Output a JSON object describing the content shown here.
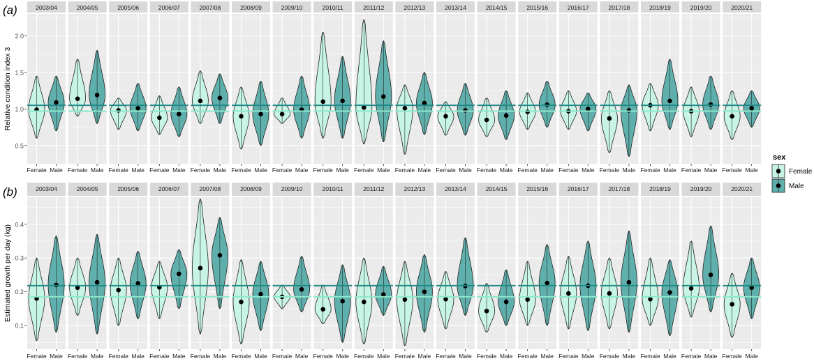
{
  "colors": {
    "female_fill": "#c7f4e4",
    "male_fill": "#5fb0ac",
    "female_line": "#8ee8cc",
    "male_line": "#1f8a86",
    "panel_bg": "#ebebeb",
    "strip_bg": "#d9d9d9",
    "grid": "#ffffff"
  },
  "legend": {
    "title": "sex",
    "items": [
      "Female",
      "Male"
    ]
  },
  "chart_data": [
    {
      "type": "violin",
      "panel_label": "(a)",
      "ylabel": "Relative condition index 3",
      "ylim": [
        0.25,
        2.3
      ],
      "yticks": [
        0.5,
        1.0,
        1.5,
        2.0
      ],
      "ytick_labels": [
        "0.5",
        "1.0",
        "1.5",
        "2.0"
      ],
      "grid": true,
      "facets": [
        "2003/04",
        "2004/05",
        "2005/06",
        "2006/07",
        "2007/08",
        "2008/09",
        "2009/10",
        "2010/11",
        "2011/12",
        "2012/13",
        "2013/14",
        "2014/15",
        "2015/16",
        "2016/17",
        "2017/18",
        "2018/19",
        "2019/20",
        "2020/21"
      ],
      "categories": [
        "Female",
        "Male"
      ],
      "hlines": {
        "Female": 0.97,
        "Male": 1.05
      },
      "series": [
        {
          "name": "Female",
          "means": [
            0.99,
            1.14,
            0.98,
            0.88,
            1.11,
            0.9,
            0.93,
            1.1,
            1.02,
            1.01,
            0.9,
            0.85,
            0.96,
            0.97,
            0.87,
            1.05,
            0.97,
            0.9
          ],
          "min": [
            0.6,
            0.9,
            0.72,
            0.65,
            0.8,
            0.45,
            0.8,
            0.6,
            0.52,
            0.38,
            0.64,
            0.62,
            0.72,
            0.72,
            0.4,
            0.7,
            0.62,
            0.58
          ],
          "max": [
            1.45,
            1.68,
            1.15,
            1.18,
            1.52,
            1.3,
            1.15,
            2.05,
            2.22,
            1.33,
            1.1,
            1.15,
            1.22,
            1.25,
            1.25,
            1.35,
            1.3,
            1.25
          ]
        },
        {
          "name": "Male",
          "means": [
            1.09,
            1.19,
            1.01,
            0.93,
            1.15,
            0.93,
            0.99,
            1.11,
            1.17,
            1.08,
            0.98,
            0.91,
            1.06,
            1.0,
            0.98,
            1.11,
            1.06,
            1.01
          ],
          "min": [
            0.7,
            0.8,
            0.7,
            0.62,
            0.8,
            0.5,
            0.6,
            0.6,
            0.55,
            0.65,
            0.64,
            0.58,
            0.75,
            0.7,
            0.35,
            0.72,
            0.72,
            0.75
          ],
          "max": [
            1.45,
            1.8,
            1.35,
            1.3,
            1.48,
            1.38,
            1.45,
            1.72,
            1.93,
            1.5,
            1.35,
            1.25,
            1.38,
            1.22,
            1.33,
            1.68,
            1.45,
            1.25
          ]
        }
      ]
    },
    {
      "type": "violin",
      "panel_label": "(b)",
      "ylabel": "Estimated growth per day (kg)",
      "ylim": [
        0.03,
        0.48
      ],
      "yticks": [
        0.1,
        0.2,
        0.3,
        0.4
      ],
      "ytick_labels": [
        "0.1",
        "0.2",
        "0.3",
        "0.4"
      ],
      "grid": true,
      "facets": [
        "2003/04",
        "2004/05",
        "2005/06",
        "2006/07",
        "2007/08",
        "2008/09",
        "2009/10",
        "2010/11",
        "2011/12",
        "2012/13",
        "2013/14",
        "2014/15",
        "2015/16",
        "2016/17",
        "2017/18",
        "2018/19",
        "2019/20",
        "2020/21"
      ],
      "categories": [
        "Female",
        "Male"
      ],
      "hlines": {
        "Female": 0.185,
        "Male": 0.218
      },
      "series": [
        {
          "name": "Female",
          "means": [
            0.18,
            0.212,
            0.205,
            0.213,
            0.27,
            0.17,
            0.185,
            0.148,
            0.17,
            0.177,
            0.178,
            0.143,
            0.177,
            0.195,
            0.195,
            0.178,
            0.21,
            0.163
          ],
          "min": [
            0.055,
            0.13,
            0.1,
            0.12,
            0.075,
            0.045,
            0.15,
            0.105,
            0.045,
            0.04,
            0.09,
            0.08,
            0.1,
            0.09,
            0.09,
            0.1,
            0.125,
            0.065
          ],
          "max": [
            0.3,
            0.3,
            0.3,
            0.29,
            0.475,
            0.295,
            0.22,
            0.22,
            0.3,
            0.29,
            0.26,
            0.225,
            0.29,
            0.305,
            0.3,
            0.3,
            0.35,
            0.255
          ]
        },
        {
          "name": "Male",
          "means": [
            0.22,
            0.228,
            0.225,
            0.253,
            0.308,
            0.193,
            0.207,
            0.172,
            0.192,
            0.2,
            0.217,
            0.17,
            0.226,
            0.218,
            0.228,
            0.198,
            0.25,
            0.212
          ],
          "min": [
            0.08,
            0.075,
            0.12,
            0.15,
            0.15,
            0.085,
            0.14,
            0.05,
            0.13,
            0.08,
            0.13,
            0.1,
            0.1,
            0.085,
            0.08,
            0.07,
            0.14,
            0.12
          ],
          "max": [
            0.365,
            0.37,
            0.32,
            0.325,
            0.42,
            0.29,
            0.305,
            0.28,
            0.275,
            0.31,
            0.36,
            0.265,
            0.34,
            0.35,
            0.38,
            0.295,
            0.395,
            0.3
          ]
        }
      ]
    }
  ]
}
